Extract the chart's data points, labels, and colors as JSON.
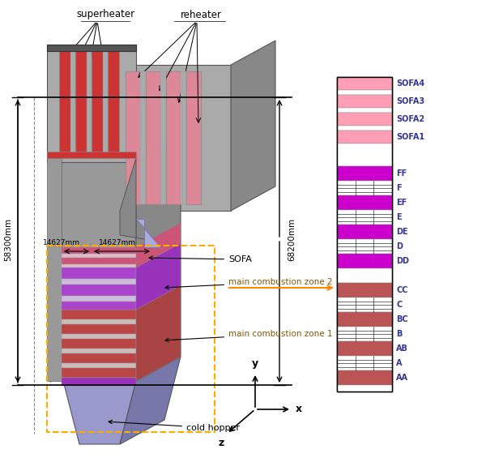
{
  "bg_color": "#ffffff",
  "fig_width": 6.0,
  "fig_height": 5.86,
  "annotation_sofa": "SOFA",
  "annotation_mcz2": "main combustion zone 2",
  "annotation_mcz1": "main combustion zone 1",
  "annotation_ch": "cold hopper",
  "annotation_superheater": "superheater",
  "annotation_reheater": "reheater",
  "annotation_14627_left": "14627mm",
  "annotation_14627_right": "14627mm",
  "dim_left_label": "58300mm",
  "dim_right_label": "68200mm",
  "gray_side": "#888888",
  "gray_top": "#aaaaaa",
  "red_panel": "#CC3333",
  "pink_panel": "#DD8899",
  "purple_burner": "#9933BB",
  "red_burner": "#AA3333",
  "hopper_color": "#9999CC",
  "hopper_side": "#7777AA",
  "sofa_pink": "#CC6688",
  "legend_pink": "#FF9EB5",
  "legend_purple": "#CC00CC",
  "legend_brown": "#BB5555"
}
